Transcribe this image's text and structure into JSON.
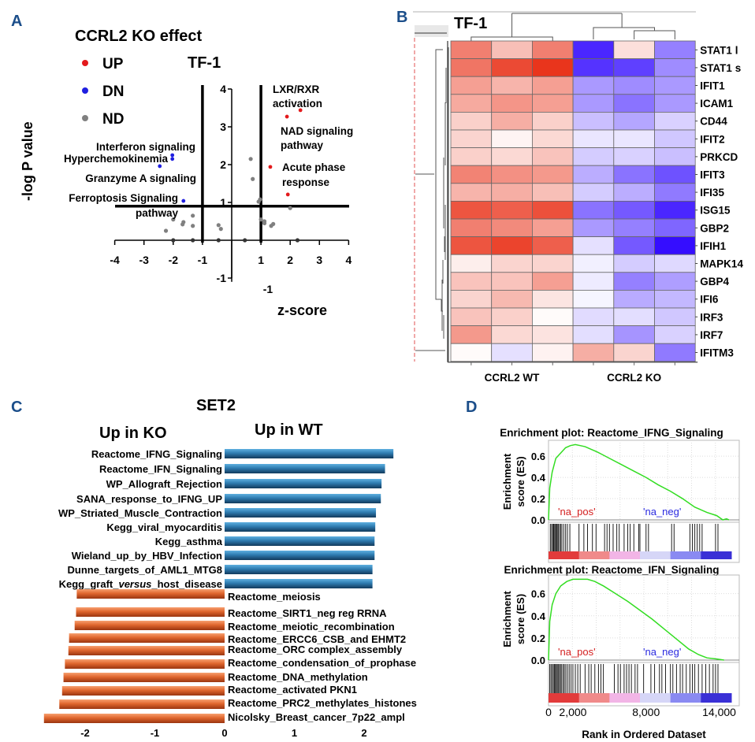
{
  "figure": {
    "panel_labels": [
      "A",
      "B",
      "C",
      "D"
    ],
    "panel_label_color": "#1b4e8a"
  },
  "chart_data": [
    {
      "panel": "A",
      "type": "scatter",
      "title": "TF-1",
      "legend_title": "CCRL2 KO effect",
      "legend_placement": "top-left",
      "legend": [
        {
          "label": "UP",
          "color": "#e31a1c"
        },
        {
          "label": "DN",
          "color": "#1f1fe0"
        },
        {
          "label": "ND",
          "color": "#808080"
        }
      ],
      "xlabel": "z-score",
      "ylabel": "-log P value",
      "xlim": [
        -4,
        4
      ],
      "ylim": [
        -1,
        4
      ],
      "xticks": [
        "-4",
        "-3",
        "-2",
        "-1",
        "1",
        "2",
        "3",
        "4"
      ],
      "yticks": [
        "-1",
        "1",
        "2",
        "3",
        "4"
      ],
      "extra_label": "-1",
      "threshold_lines": {
        "z": [
          -1,
          1
        ],
        "neg_log_p": 0.9
      },
      "points": [
        {
          "x": 2.35,
          "y": 3.44,
          "group": "UP"
        },
        {
          "x": 1.89,
          "y": 3.27,
          "group": "UP"
        },
        {
          "x": 1.32,
          "y": 1.94,
          "group": "UP"
        },
        {
          "x": 1.92,
          "y": 1.21,
          "group": "UP"
        },
        {
          "x": -2.03,
          "y": 2.25,
          "group": "DN"
        },
        {
          "x": -2.03,
          "y": 2.15,
          "group": "DN"
        },
        {
          "x": -2.46,
          "y": 1.96,
          "group": "DN"
        },
        {
          "x": -1.65,
          "y": 1.04,
          "group": "DN"
        },
        {
          "x": 0.65,
          "y": 2.15,
          "group": "ND"
        },
        {
          "x": 0.72,
          "y": 1.62,
          "group": "ND"
        },
        {
          "x": 0.92,
          "y": 1.02,
          "group": "ND"
        },
        {
          "x": 0.97,
          "y": 1.08,
          "group": "ND"
        },
        {
          "x": 2.0,
          "y": 0.85,
          "group": "ND"
        },
        {
          "x": -2.0,
          "y": 0.55,
          "group": "ND"
        },
        {
          "x": -1.65,
          "y": 0.48,
          "group": "ND"
        },
        {
          "x": -1.68,
          "y": 0.42,
          "group": "ND"
        },
        {
          "x": -1.33,
          "y": 0.65,
          "group": "ND"
        },
        {
          "x": -1.33,
          "y": 0.38,
          "group": "ND"
        },
        {
          "x": -2.25,
          "y": 0.25,
          "group": "ND"
        },
        {
          "x": -0.45,
          "y": 0.4,
          "group": "ND"
        },
        {
          "x": -0.37,
          "y": 0.3,
          "group": "ND"
        },
        {
          "x": 1.0,
          "y": 0.55,
          "group": "ND"
        },
        {
          "x": 1.12,
          "y": 0.5,
          "group": "ND"
        },
        {
          "x": 1.12,
          "y": 0.45,
          "group": "ND"
        },
        {
          "x": 1.35,
          "y": 0.38,
          "group": "ND"
        },
        {
          "x": 1.42,
          "y": 0.43,
          "group": "ND"
        },
        {
          "x": -2.0,
          "y": 0.0,
          "group": "ND"
        },
        {
          "x": -1.33,
          "y": 0.0,
          "group": "ND"
        },
        {
          "x": -0.45,
          "y": 0.0,
          "group": "ND"
        },
        {
          "x": 0.45,
          "y": 0.0,
          "group": "ND"
        },
        {
          "x": 2.25,
          "y": 0.0,
          "group": "ND"
        }
      ],
      "annotations": [
        {
          "text": "LXR/RXR",
          "side": "right"
        },
        {
          "text": "activation",
          "side": "right"
        },
        {
          "text": "NAD signaling",
          "side": "right"
        },
        {
          "text": "pathway",
          "side": "right"
        },
        {
          "text": "Acute phase",
          "side": "right"
        },
        {
          "text": "response",
          "side": "right"
        },
        {
          "text": "Interferon signaling",
          "side": "left"
        },
        {
          "text": "Hyperchemokinemia",
          "side": "left"
        },
        {
          "text": "Granzyme A signaling",
          "side": "left"
        },
        {
          "text": "Ferroptosis Signaling",
          "side": "left"
        },
        {
          "text": "pathway",
          "side": "left"
        }
      ]
    },
    {
      "panel": "B",
      "type": "heatmap",
      "title": "TF-1",
      "columns": [
        "CCRL2 WT",
        "CCRL2 WT",
        "CCRL2 WT",
        "CCRL2 KO",
        "CCRL2 KO",
        "CCRL2 KO"
      ],
      "column_groups": [
        "CCRL2 WT",
        "CCRL2 KO"
      ],
      "rows": [
        "STAT1 l",
        "STAT1 s",
        "IFIT1",
        "ICAM1",
        "CD44",
        "IFIT2",
        "PRKCD",
        "IFIT3",
        "IFI35",
        "ISG15",
        "GBP2",
        "IFIH1",
        "MAPK14",
        "GBP4",
        "IFI6",
        "IRF3",
        "IRF7",
        "IFITM3"
      ],
      "color_scale": {
        "low": "#2a00ff",
        "mid": "#ffffff",
        "high": "#e82a10",
        "range": [
          -1,
          1
        ]
      },
      "values": [
        [
          0.6,
          0.3,
          0.6,
          -0.85,
          0.15,
          -0.5
        ],
        [
          0.65,
          0.85,
          0.95,
          -0.8,
          -0.75,
          -0.45
        ],
        [
          0.45,
          0.35,
          0.45,
          -0.4,
          -0.45,
          -0.4
        ],
        [
          0.4,
          0.5,
          0.45,
          -0.4,
          -0.55,
          -0.4
        ],
        [
          0.22,
          0.38,
          0.22,
          -0.25,
          -0.35,
          -0.18
        ],
        [
          0.2,
          0.05,
          0.18,
          -0.1,
          -0.1,
          -0.22
        ],
        [
          0.22,
          0.18,
          0.28,
          -0.2,
          -0.18,
          -0.25
        ],
        [
          0.58,
          0.52,
          0.48,
          -0.32,
          -0.55,
          -0.68
        ],
        [
          0.35,
          0.38,
          0.3,
          -0.2,
          -0.32,
          -0.52
        ],
        [
          0.8,
          0.75,
          0.82,
          -0.55,
          -0.65,
          -0.85
        ],
        [
          0.6,
          0.55,
          0.45,
          -0.4,
          -0.5,
          -0.6
        ],
        [
          0.8,
          0.88,
          0.75,
          -0.12,
          -0.65,
          -0.95
        ],
        [
          0.08,
          0.2,
          0.2,
          -0.06,
          -0.2,
          -0.15
        ],
        [
          0.28,
          0.28,
          0.45,
          -0.08,
          -0.5,
          -0.38
        ],
        [
          0.2,
          0.33,
          0.12,
          -0.04,
          -0.33,
          -0.28
        ],
        [
          0.28,
          0.22,
          0.02,
          -0.14,
          -0.13,
          -0.22
        ],
        [
          0.48,
          0.18,
          0.13,
          -0.13,
          -0.42,
          -0.18
        ],
        [
          0.02,
          -0.12,
          0.06,
          0.38,
          0.2,
          -0.52
        ]
      ]
    },
    {
      "panel": "C",
      "type": "bar",
      "title": "SET2",
      "orientation": "horizontal",
      "group_labels": {
        "left": "Up in KO",
        "right": "Up in WT"
      },
      "xticks": [
        "-2",
        "-1",
        "0",
        "1",
        "2"
      ],
      "xlim": [
        -2.7,
        2.7
      ],
      "series": [
        {
          "name": "Up in WT",
          "color": "#2e7bb0",
          "categories": [
            "Reactome_IFNG_Signaling",
            "Reactome_IFN_Signaling",
            "WP_Allograft_Rejection",
            "SANA_response_to_IFNG_UP",
            "WP_Striated_Muscle_Contraction",
            "Kegg_viral_myocarditis",
            "Kegg_asthma",
            "Wieland_up_by_HBV_Infection",
            "Dunne_targets_of_AML1_MTG8",
            "Kegg_graft_versus_host_disease"
          ],
          "values": [
            2.42,
            2.3,
            2.25,
            2.24,
            2.17,
            2.16,
            2.15,
            2.15,
            2.12,
            2.12
          ]
        },
        {
          "name": "Up in KO",
          "color": "#e0662e",
          "categories": [
            "Reactome_meiosis",
            "Reactome_SIRT1_neg reg RRNA",
            "Reactome_meiotic_recombination",
            "Reactome_ERCC6_CSB_and EHMT2",
            "Reactome_ORC complex_assembly",
            "Reactome_condensation_of_prophase",
            "Reactome_DNA_methylation",
            "Reactome_activated PKN1",
            "Reactome_PRC2_methylates_histones",
            "Nicolsky_Breast_cancer_7p22_ampl"
          ],
          "values": [
            -2.12,
            -2.13,
            -2.15,
            -2.23,
            -2.24,
            -2.29,
            -2.31,
            -2.33,
            -2.37,
            -2.59
          ]
        }
      ],
      "category_italic_segment": {
        "category": "Kegg_graft_versus_host_disease",
        "italic": "versus"
      }
    },
    {
      "panel": "D",
      "type": "line",
      "plots": [
        {
          "title": "Enrichment plot: Reactome_IFNG_Signaling",
          "ylabel": "Enrichment score (ES)",
          "yticks": [
            "0.0",
            "0.2",
            "0.4",
            "0.6"
          ],
          "ylim": [
            0,
            0.72
          ],
          "xlim": [
            0,
            15000
          ],
          "pos_label": "'na_pos'",
          "neg_label": "'na_neg'",
          "es_curve": [
            [
              0,
              0
            ],
            [
              100,
              0.3
            ],
            [
              300,
              0.45
            ],
            [
              600,
              0.58
            ],
            [
              1000,
              0.63
            ],
            [
              1400,
              0.68
            ],
            [
              1800,
              0.7
            ],
            [
              2200,
              0.71
            ],
            [
              2600,
              0.7
            ],
            [
              3000,
              0.69
            ],
            [
              4000,
              0.64
            ],
            [
              5000,
              0.58
            ],
            [
              6000,
              0.52
            ],
            [
              7000,
              0.46
            ],
            [
              8000,
              0.4
            ],
            [
              9000,
              0.33
            ],
            [
              10000,
              0.27
            ],
            [
              11000,
              0.2
            ],
            [
              12000,
              0.12
            ],
            [
              13000,
              0.07
            ],
            [
              13800,
              0.04
            ],
            [
              14300,
              0.0
            ],
            [
              14600,
              0.01
            ],
            [
              14800,
              0.0
            ]
          ],
          "hits": [
            150,
            250,
            350,
            420,
            500,
            580,
            650,
            720,
            800,
            900,
            1000,
            1100,
            1250,
            1400,
            1550,
            1750,
            2500,
            2900,
            3200,
            3600,
            3900,
            4600,
            4800,
            5000,
            5300,
            5600,
            5800,
            6200,
            6500,
            6700,
            7000,
            7400,
            7500,
            8000,
            8200,
            10100,
            10300,
            11600,
            11800,
            12000,
            12200,
            12400,
            12600,
            13700,
            13900
          ],
          "ranking_colors": [
            "#e23b3b",
            "#f08a8a",
            "#f2b5e6",
            "#d6d6f7",
            "#8a8af2",
            "#3a30d6"
          ]
        },
        {
          "title": "Enrichment plot: Reactome_IFN_Signaling",
          "ylabel": "Enrichment score (ES)",
          "yticks": [
            "0.0",
            "0.2",
            "0.4",
            "0.6"
          ],
          "ylim": [
            0,
            0.74
          ],
          "xlim": [
            0,
            15000
          ],
          "xticks": [
            "0",
            "2,000",
            "8,000",
            "14,000"
          ],
          "xlabel": "Rank in Ordered Dataset",
          "pos_label": "'na_pos'",
          "neg_label": "'na_neg'",
          "es_curve": [
            [
              0,
              0
            ],
            [
              100,
              0.35
            ],
            [
              300,
              0.5
            ],
            [
              600,
              0.6
            ],
            [
              1000,
              0.67
            ],
            [
              1500,
              0.71
            ],
            [
              2000,
              0.73
            ],
            [
              2600,
              0.73
            ],
            [
              3200,
              0.73
            ],
            [
              3800,
              0.71
            ],
            [
              4500,
              0.67
            ],
            [
              5500,
              0.6
            ],
            [
              6500,
              0.53
            ],
            [
              7500,
              0.45
            ],
            [
              8500,
              0.37
            ],
            [
              9500,
              0.28
            ],
            [
              10500,
              0.19
            ],
            [
              11500,
              0.1
            ],
            [
              12300,
              0.05
            ],
            [
              13000,
              0.02
            ],
            [
              13800,
              0.01
            ],
            [
              14400,
              0.0
            ]
          ],
          "hits": [
            100,
            200,
            300,
            400,
            480,
            560,
            640,
            720,
            800,
            900,
            980,
            1080,
            1200,
            1300,
            1420,
            1560,
            1700,
            1850,
            2000,
            2200,
            2400,
            2600,
            3000,
            3300,
            3500,
            3800,
            4100,
            4300,
            4500,
            5400,
            5700,
            5900,
            6200,
            6400,
            6600,
            6800,
            7100,
            7300,
            7800,
            8400,
            8700,
            9100,
            9300,
            9600,
            10000,
            10200,
            10500,
            10800,
            11000,
            11300,
            11600,
            11800,
            12000,
            12300,
            12600,
            12900,
            13200,
            13500,
            13700,
            13900
          ],
          "ranking_colors": [
            "#e23b3b",
            "#f08a8a",
            "#f2b5e6",
            "#d6d6f7",
            "#8a8af2",
            "#3a30d6"
          ]
        }
      ]
    }
  ]
}
